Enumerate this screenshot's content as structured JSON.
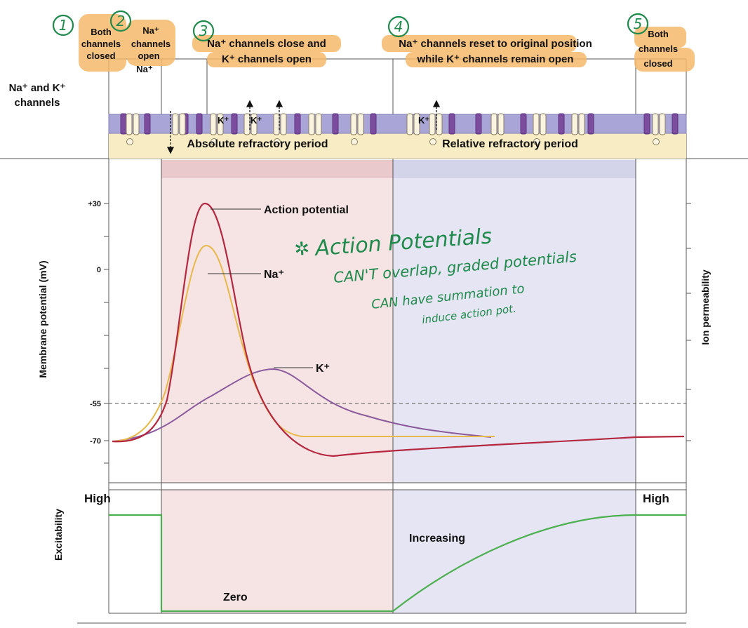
{
  "header": {
    "phases": [
      {
        "num": "1",
        "lines": [
          "Both",
          "channels",
          "closed"
        ]
      },
      {
        "num": "2",
        "lines": [
          "Na⁺",
          "channels",
          "open"
        ],
        "extra": "Na⁺"
      },
      {
        "num": "3",
        "lines": [
          "Na⁺ channels close and",
          "K⁺ channels open"
        ]
      },
      {
        "num": "4",
        "lines": [
          "Na⁺ channels reset to original position",
          "while K⁺ channels remain open"
        ]
      },
      {
        "num": "5",
        "lines": [
          "Both",
          "channels",
          "closed"
        ]
      }
    ]
  },
  "membrane": {
    "row_label": [
      "Na⁺ and K⁺",
      "channels"
    ],
    "k_labels": [
      "K⁺",
      "K⁺",
      "K⁺"
    ],
    "absolute_refractory": "Absolute refractory period",
    "relative_refractory": "Relative refractory period"
  },
  "potential_graph": {
    "ylabel": "Membrane potential (mV)",
    "right_label": "Ion permeability",
    "ticks": [
      "+30",
      "0",
      "-55",
      "-70"
    ],
    "curve_labels": {
      "action_potential": "Action potential",
      "na": "Na⁺",
      "k": "K⁺"
    }
  },
  "excitability_graph": {
    "ylabel": "Excitability",
    "high_left": "High",
    "high_right": "High",
    "zero": "Zero",
    "increasing": "Increasing"
  },
  "annotation": {
    "title": "Action Potentials",
    "lines": [
      "CAN'T overlap, graded potentials",
      "CAN have summation to",
      "induce action pot."
    ]
  },
  "colors": {
    "action_potential": "#b5273f",
    "na_curve": "#e8b84a",
    "k_curve": "#8a5a9c",
    "absolute_region": "#f5e3e3",
    "relative_region": "#e4e4f2",
    "excitability": "#4caf50",
    "highlight": "#f6b96c",
    "membrane": "#a9a5d6",
    "handwriting": "#1f8a4c"
  }
}
